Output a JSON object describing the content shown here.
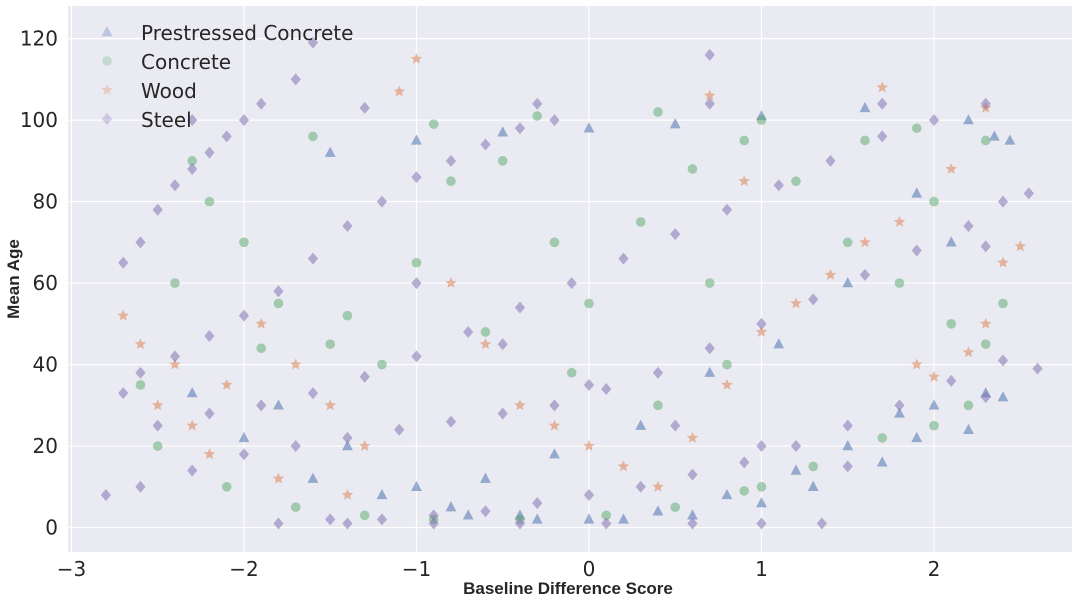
{
  "chart_data": {
    "type": "scatter",
    "title": "",
    "xlabel": "Baseline Difference Score",
    "ylabel": "Mean Age",
    "xlim": [
      -3.02,
      2.8
    ],
    "ylim": [
      -6,
      128
    ],
    "xticks": [
      -3,
      -2,
      -1,
      0,
      1,
      2
    ],
    "xtick_labels": [
      "−3",
      "−2",
      "−1",
      "0",
      "1",
      "2"
    ],
    "yticks": [
      0,
      20,
      40,
      60,
      80,
      100,
      120
    ],
    "ytick_labels": [
      "0",
      "20",
      "40",
      "60",
      "80",
      "100",
      "120"
    ],
    "grid": true,
    "style": "seaborn-darkgrid",
    "legend_position": "top-left",
    "series": [
      {
        "name": "Prestressed Concrete",
        "marker": "triangle",
        "color": "#4c72b0",
        "opacity": 0.3,
        "points": [
          [
            -2.3,
            33
          ],
          [
            -2.0,
            22
          ],
          [
            -1.6,
            12
          ],
          [
            -1.2,
            8
          ],
          [
            -0.8,
            5
          ],
          [
            -0.4,
            3
          ],
          [
            0.0,
            2
          ],
          [
            0.4,
            4
          ],
          [
            0.8,
            8
          ],
          [
            1.2,
            14
          ],
          [
            1.5,
            20
          ],
          [
            1.8,
            28
          ],
          [
            2.0,
            30
          ],
          [
            2.3,
            33
          ],
          [
            2.4,
            32
          ],
          [
            2.1,
            70
          ],
          [
            1.9,
            82
          ],
          [
            1.5,
            60
          ],
          [
            1.1,
            45
          ],
          [
            0.7,
            38
          ],
          [
            0.3,
            25
          ],
          [
            -0.2,
            18
          ],
          [
            -0.6,
            12
          ],
          [
            -1.0,
            10
          ],
          [
            -1.4,
            20
          ],
          [
            -1.8,
            30
          ],
          [
            2.35,
            96
          ],
          [
            2.2,
            100
          ],
          [
            1.6,
            103
          ],
          [
            1.0,
            101
          ],
          [
            0.5,
            99
          ],
          [
            0.0,
            98
          ],
          [
            -0.5,
            97
          ],
          [
            -1.0,
            95
          ],
          [
            -1.5,
            92
          ],
          [
            2.44,
            95
          ],
          [
            1.3,
            10
          ],
          [
            1.0,
            6
          ],
          [
            0.6,
            3
          ],
          [
            0.2,
            2
          ],
          [
            -0.3,
            2
          ],
          [
            -0.7,
            3
          ],
          [
            1.7,
            16
          ],
          [
            2.2,
            24
          ],
          [
            1.9,
            22
          ]
        ]
      },
      {
        "name": "Concrete",
        "marker": "circle",
        "color": "#55a868",
        "opacity": 0.25,
        "points": [
          [
            -2.6,
            35
          ],
          [
            -2.4,
            60
          ],
          [
            -2.2,
            80
          ],
          [
            -2.0,
            70
          ],
          [
            -1.8,
            55
          ],
          [
            -1.5,
            45
          ],
          [
            -1.2,
            40
          ],
          [
            -1.0,
            65
          ],
          [
            -0.8,
            85
          ],
          [
            -0.5,
            90
          ],
          [
            -0.2,
            70
          ],
          [
            0.0,
            55
          ],
          [
            0.3,
            75
          ],
          [
            0.6,
            88
          ],
          [
            0.9,
            95
          ],
          [
            1.2,
            85
          ],
          [
            1.5,
            70
          ],
          [
            1.8,
            60
          ],
          [
            2.1,
            50
          ],
          [
            2.3,
            45
          ],
          [
            2.4,
            55
          ],
          [
            -2.5,
            20
          ],
          [
            -2.1,
            10
          ],
          [
            -1.7,
            5
          ],
          [
            -1.3,
            3
          ],
          [
            -0.9,
            2
          ],
          [
            -0.4,
            2
          ],
          [
            0.1,
            3
          ],
          [
            0.5,
            5
          ],
          [
            0.9,
            9
          ],
          [
            1.3,
            15
          ],
          [
            1.7,
            22
          ],
          [
            2.0,
            25
          ],
          [
            2.2,
            30
          ],
          [
            2.0,
            80
          ],
          [
            1.6,
            95
          ],
          [
            1.0,
            100
          ],
          [
            0.4,
            102
          ],
          [
            -0.3,
            101
          ],
          [
            -0.9,
            99
          ],
          [
            -1.6,
            96
          ],
          [
            -2.3,
            90
          ],
          [
            1.0,
            10
          ],
          [
            0.8,
            40
          ],
          [
            0.4,
            30
          ],
          [
            -0.1,
            38
          ],
          [
            -0.6,
            48
          ],
          [
            -1.4,
            52
          ],
          [
            -1.9,
            44
          ],
          [
            2.3,
            95
          ],
          [
            1.9,
            98
          ],
          [
            0.7,
            60
          ]
        ]
      },
      {
        "name": "Wood",
        "marker": "star",
        "color": "#dd8452",
        "opacity": 0.3,
        "points": [
          [
            -2.7,
            52
          ],
          [
            -2.6,
            45
          ],
          [
            -2.5,
            30
          ],
          [
            -2.3,
            25
          ],
          [
            -2.1,
            35
          ],
          [
            -1.9,
            50
          ],
          [
            -1.7,
            40
          ],
          [
            -1.5,
            30
          ],
          [
            -1.3,
            20
          ],
          [
            -1.1,
            107
          ],
          [
            -1.0,
            115
          ],
          [
            -0.8,
            60
          ],
          [
            -0.6,
            45
          ],
          [
            -0.4,
            30
          ],
          [
            -0.2,
            25
          ],
          [
            0.0,
            20
          ],
          [
            0.2,
            15
          ],
          [
            0.4,
            10
          ],
          [
            0.6,
            22
          ],
          [
            0.8,
            35
          ],
          [
            1.0,
            48
          ],
          [
            1.2,
            55
          ],
          [
            1.4,
            62
          ],
          [
            1.6,
            70
          ],
          [
            1.8,
            75
          ],
          [
            2.0,
            37
          ],
          [
            2.2,
            43
          ],
          [
            2.3,
            50
          ],
          [
            2.4,
            65
          ],
          [
            2.5,
            69
          ],
          [
            2.3,
            103
          ],
          [
            1.7,
            108
          ],
          [
            0.7,
            106
          ],
          [
            -2.2,
            18
          ],
          [
            -1.8,
            12
          ],
          [
            -1.4,
            8
          ],
          [
            2.1,
            88
          ],
          [
            1.9,
            40
          ],
          [
            -2.4,
            40
          ],
          [
            0.9,
            85
          ]
        ]
      },
      {
        "name": "Steel",
        "marker": "diamond",
        "color": "#8172b3",
        "opacity": 0.3,
        "points": [
          [
            -2.7,
            65
          ],
          [
            -2.6,
            70
          ],
          [
            -2.5,
            78
          ],
          [
            -2.4,
            84
          ],
          [
            -2.3,
            88
          ],
          [
            -2.2,
            92
          ],
          [
            -2.1,
            96
          ],
          [
            -2.0,
            100
          ],
          [
            -1.9,
            104
          ],
          [
            -1.7,
            110
          ],
          [
            -1.6,
            119
          ],
          [
            -2.6,
            38
          ],
          [
            -2.4,
            42
          ],
          [
            -2.2,
            47
          ],
          [
            -2.0,
            52
          ],
          [
            -1.8,
            58
          ],
          [
            -1.6,
            66
          ],
          [
            -1.4,
            74
          ],
          [
            -1.2,
            80
          ],
          [
            -1.0,
            86
          ],
          [
            -0.8,
            90
          ],
          [
            -0.6,
            94
          ],
          [
            -0.4,
            98
          ],
          [
            -0.2,
            100
          ],
          [
            -2.5,
            25
          ],
          [
            -2.2,
            28
          ],
          [
            -1.9,
            30
          ],
          [
            -1.6,
            33
          ],
          [
            -1.3,
            37
          ],
          [
            -1.0,
            42
          ],
          [
            -0.7,
            48
          ],
          [
            -0.4,
            54
          ],
          [
            -0.1,
            60
          ],
          [
            0.2,
            66
          ],
          [
            0.5,
            72
          ],
          [
            0.8,
            78
          ],
          [
            1.1,
            84
          ],
          [
            1.4,
            90
          ],
          [
            1.7,
            96
          ],
          [
            2.0,
            100
          ],
          [
            -2.6,
            10
          ],
          [
            -2.3,
            14
          ],
          [
            -2.0,
            18
          ],
          [
            -1.7,
            20
          ],
          [
            -1.4,
            22
          ],
          [
            -1.1,
            24
          ],
          [
            -0.8,
            26
          ],
          [
            -0.5,
            28
          ],
          [
            -0.2,
            30
          ],
          [
            0.1,
            34
          ],
          [
            0.4,
            38
          ],
          [
            0.7,
            44
          ],
          [
            1.0,
            50
          ],
          [
            1.3,
            56
          ],
          [
            1.6,
            62
          ],
          [
            1.9,
            68
          ],
          [
            2.2,
            74
          ],
          [
            2.4,
            80
          ],
          [
            -1.8,
            1
          ],
          [
            -1.5,
            2
          ],
          [
            -1.2,
            2
          ],
          [
            -0.9,
            3
          ],
          [
            -0.6,
            4
          ],
          [
            -0.3,
            6
          ],
          [
            0.0,
            8
          ],
          [
            0.3,
            10
          ],
          [
            0.6,
            13
          ],
          [
            0.9,
            16
          ],
          [
            1.2,
            20
          ],
          [
            1.5,
            25
          ],
          [
            1.8,
            30
          ],
          [
            2.1,
            36
          ],
          [
            2.4,
            41
          ],
          [
            2.55,
            82
          ],
          [
            2.6,
            39
          ],
          [
            -1.4,
            1
          ],
          [
            -0.9,
            1
          ],
          [
            -0.4,
            1
          ],
          [
            0.1,
            1
          ],
          [
            0.6,
            1
          ],
          [
            1.0,
            1
          ],
          [
            1.35,
            1
          ],
          [
            -2.3,
            100
          ],
          [
            -1.3,
            103
          ],
          [
            -0.3,
            104
          ],
          [
            0.7,
            104
          ],
          [
            1.7,
            104
          ],
          [
            2.3,
            104
          ],
          [
            0.7,
            116
          ],
          [
            -1.0,
            60
          ],
          [
            -0.5,
            45
          ],
          [
            0.0,
            35
          ],
          [
            0.5,
            25
          ],
          [
            1.0,
            20
          ],
          [
            1.5,
            15
          ],
          [
            2.3,
            69
          ],
          [
            2.3,
            32
          ],
          [
            -2.8,
            8
          ],
          [
            -2.7,
            33
          ]
        ]
      }
    ]
  }
}
